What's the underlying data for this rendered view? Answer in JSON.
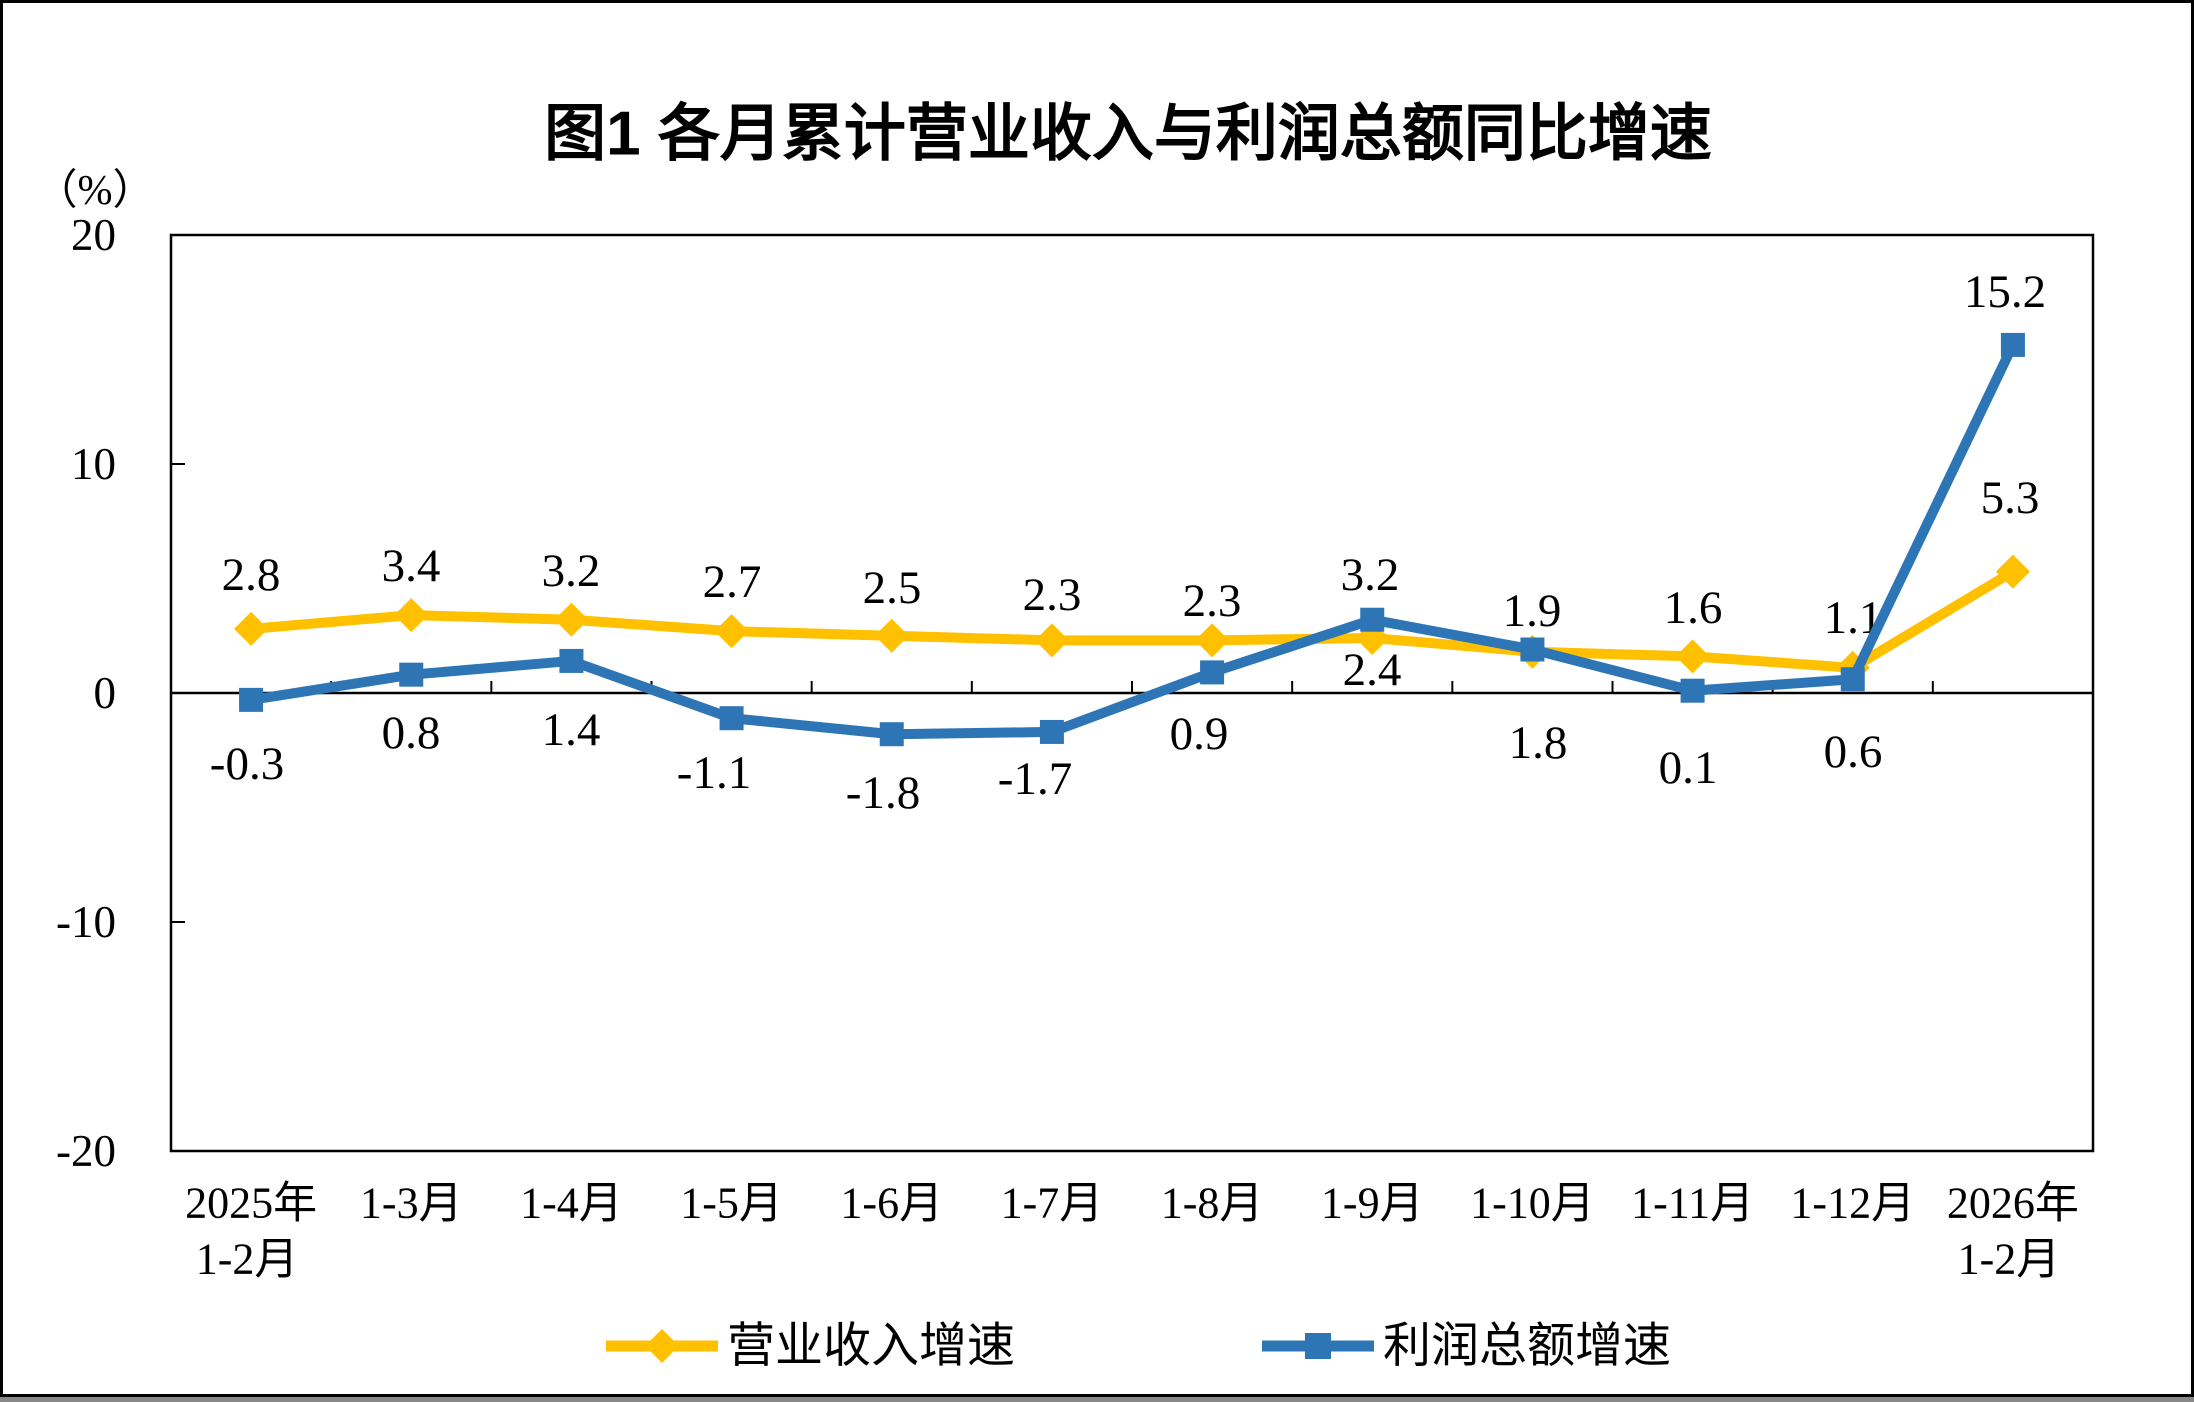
{
  "chart_data": {
    "type": "line",
    "title": "图1  各月累计营业收入与利润总额同比增速",
    "y_unit": "（%）",
    "ylim": [
      -20,
      20
    ],
    "y_ticks": [
      20,
      10,
      0,
      -10,
      -20
    ],
    "grid": false,
    "legend_position": "bottom",
    "categories": [
      {
        "line1": "2025年",
        "line2": "1-2月"
      },
      {
        "line1": "1-3月"
      },
      {
        "line1": "1-4月"
      },
      {
        "line1": "1-5月"
      },
      {
        "line1": "1-6月"
      },
      {
        "line1": "1-7月"
      },
      {
        "line1": "1-8月"
      },
      {
        "line1": "1-9月"
      },
      {
        "line1": "1-10月"
      },
      {
        "line1": "1-11月"
      },
      {
        "line1": "1-12月"
      },
      {
        "line1": "2026年",
        "line2": "1-2月"
      }
    ],
    "series": [
      {
        "name": "营业收入增速",
        "color": "#FFC000",
        "marker": "diamond",
        "values": [
          2.8,
          3.4,
          3.2,
          2.7,
          2.5,
          2.3,
          2.3,
          2.4,
          1.8,
          1.6,
          1.1,
          5.3
        ]
      },
      {
        "name": "利润总额增速",
        "color": "#2E75B6",
        "marker": "square",
        "values": [
          -0.3,
          0.8,
          1.4,
          -1.1,
          -1.8,
          -1.7,
          0.9,
          3.2,
          1.9,
          0.1,
          0.6,
          15.2
        ]
      }
    ]
  }
}
